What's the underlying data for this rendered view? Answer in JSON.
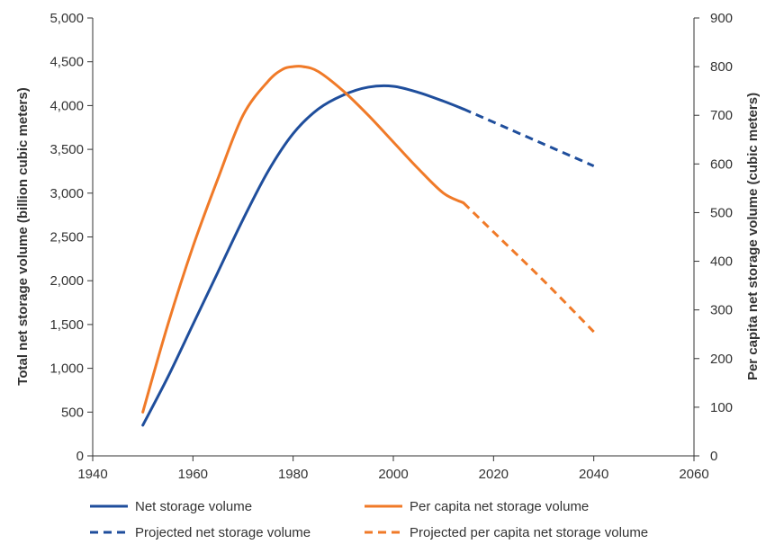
{
  "chart_data": {
    "type": "line",
    "title": "",
    "xlabel": "",
    "ylabel": "Total net storage volume (billion cubic meters)",
    "y2label": "Per capita net storage volume (cubic meters)",
    "xlim": [
      1940,
      2060
    ],
    "ylim": [
      0,
      5000
    ],
    "y2lim": [
      0,
      900
    ],
    "xticks": [
      1940,
      1960,
      1980,
      2000,
      2020,
      2040,
      2060
    ],
    "xtick_labels": [
      "1940",
      "1960",
      "1980",
      "2000",
      "2020",
      "2040",
      "2060"
    ],
    "yticks": [
      0,
      500,
      1000,
      1500,
      2000,
      2500,
      3000,
      3500,
      4000,
      4500,
      5000
    ],
    "ytick_labels": [
      "0",
      "500",
      "1,000",
      "1,500",
      "2,000",
      "2,500",
      "3,000",
      "3,500",
      "4,000",
      "4,500",
      "5,000"
    ],
    "y2ticks": [
      0,
      100,
      200,
      300,
      400,
      500,
      600,
      700,
      800,
      900
    ],
    "y2tick_labels": [
      "0",
      "100",
      "200",
      "300",
      "400",
      "500",
      "600",
      "700",
      "800",
      "900"
    ],
    "grid": false,
    "legend_position": "bottom",
    "colors": {
      "net": "#1f4e9c",
      "per_capita": "#f07a28",
      "axis": "#333333"
    },
    "series": [
      {
        "name": "Net storage volume",
        "axis": "left",
        "style": "solid",
        "color": "#1f4e9c",
        "x": [
          1950,
          1955,
          1960,
          1965,
          1970,
          1975,
          1980,
          1985,
          1990,
          1995,
          2000,
          2005,
          2010,
          2014
        ],
        "y": [
          350,
          900,
          1500,
          2100,
          2700,
          3250,
          3680,
          3960,
          4120,
          4210,
          4220,
          4150,
          4050,
          3960
        ]
      },
      {
        "name": "Per capita net storage volume",
        "axis": "right",
        "style": "solid",
        "color": "#f07a28",
        "x": [
          1950,
          1955,
          1960,
          1965,
          1970,
          1975,
          1978,
          1980,
          1982,
          1985,
          1990,
          1995,
          2000,
          2005,
          2010,
          2014
        ],
        "y": [
          90,
          270,
          430,
          570,
          700,
          770,
          795,
          800,
          800,
          790,
          750,
          700,
          645,
          590,
          540,
          520
        ]
      },
      {
        "name": "Projected net storage volume",
        "axis": "left",
        "style": "dashed",
        "color": "#1f4e9c",
        "x": [
          2014,
          2020,
          2030,
          2040
        ],
        "y": [
          3960,
          3810,
          3560,
          3310
        ]
      },
      {
        "name": "Projected per capita net storage volume",
        "axis": "right",
        "style": "dashed",
        "color": "#f07a28",
        "x": [
          2014,
          2020,
          2030,
          2040
        ],
        "y": [
          520,
          460,
          360,
          255
        ]
      }
    ]
  }
}
